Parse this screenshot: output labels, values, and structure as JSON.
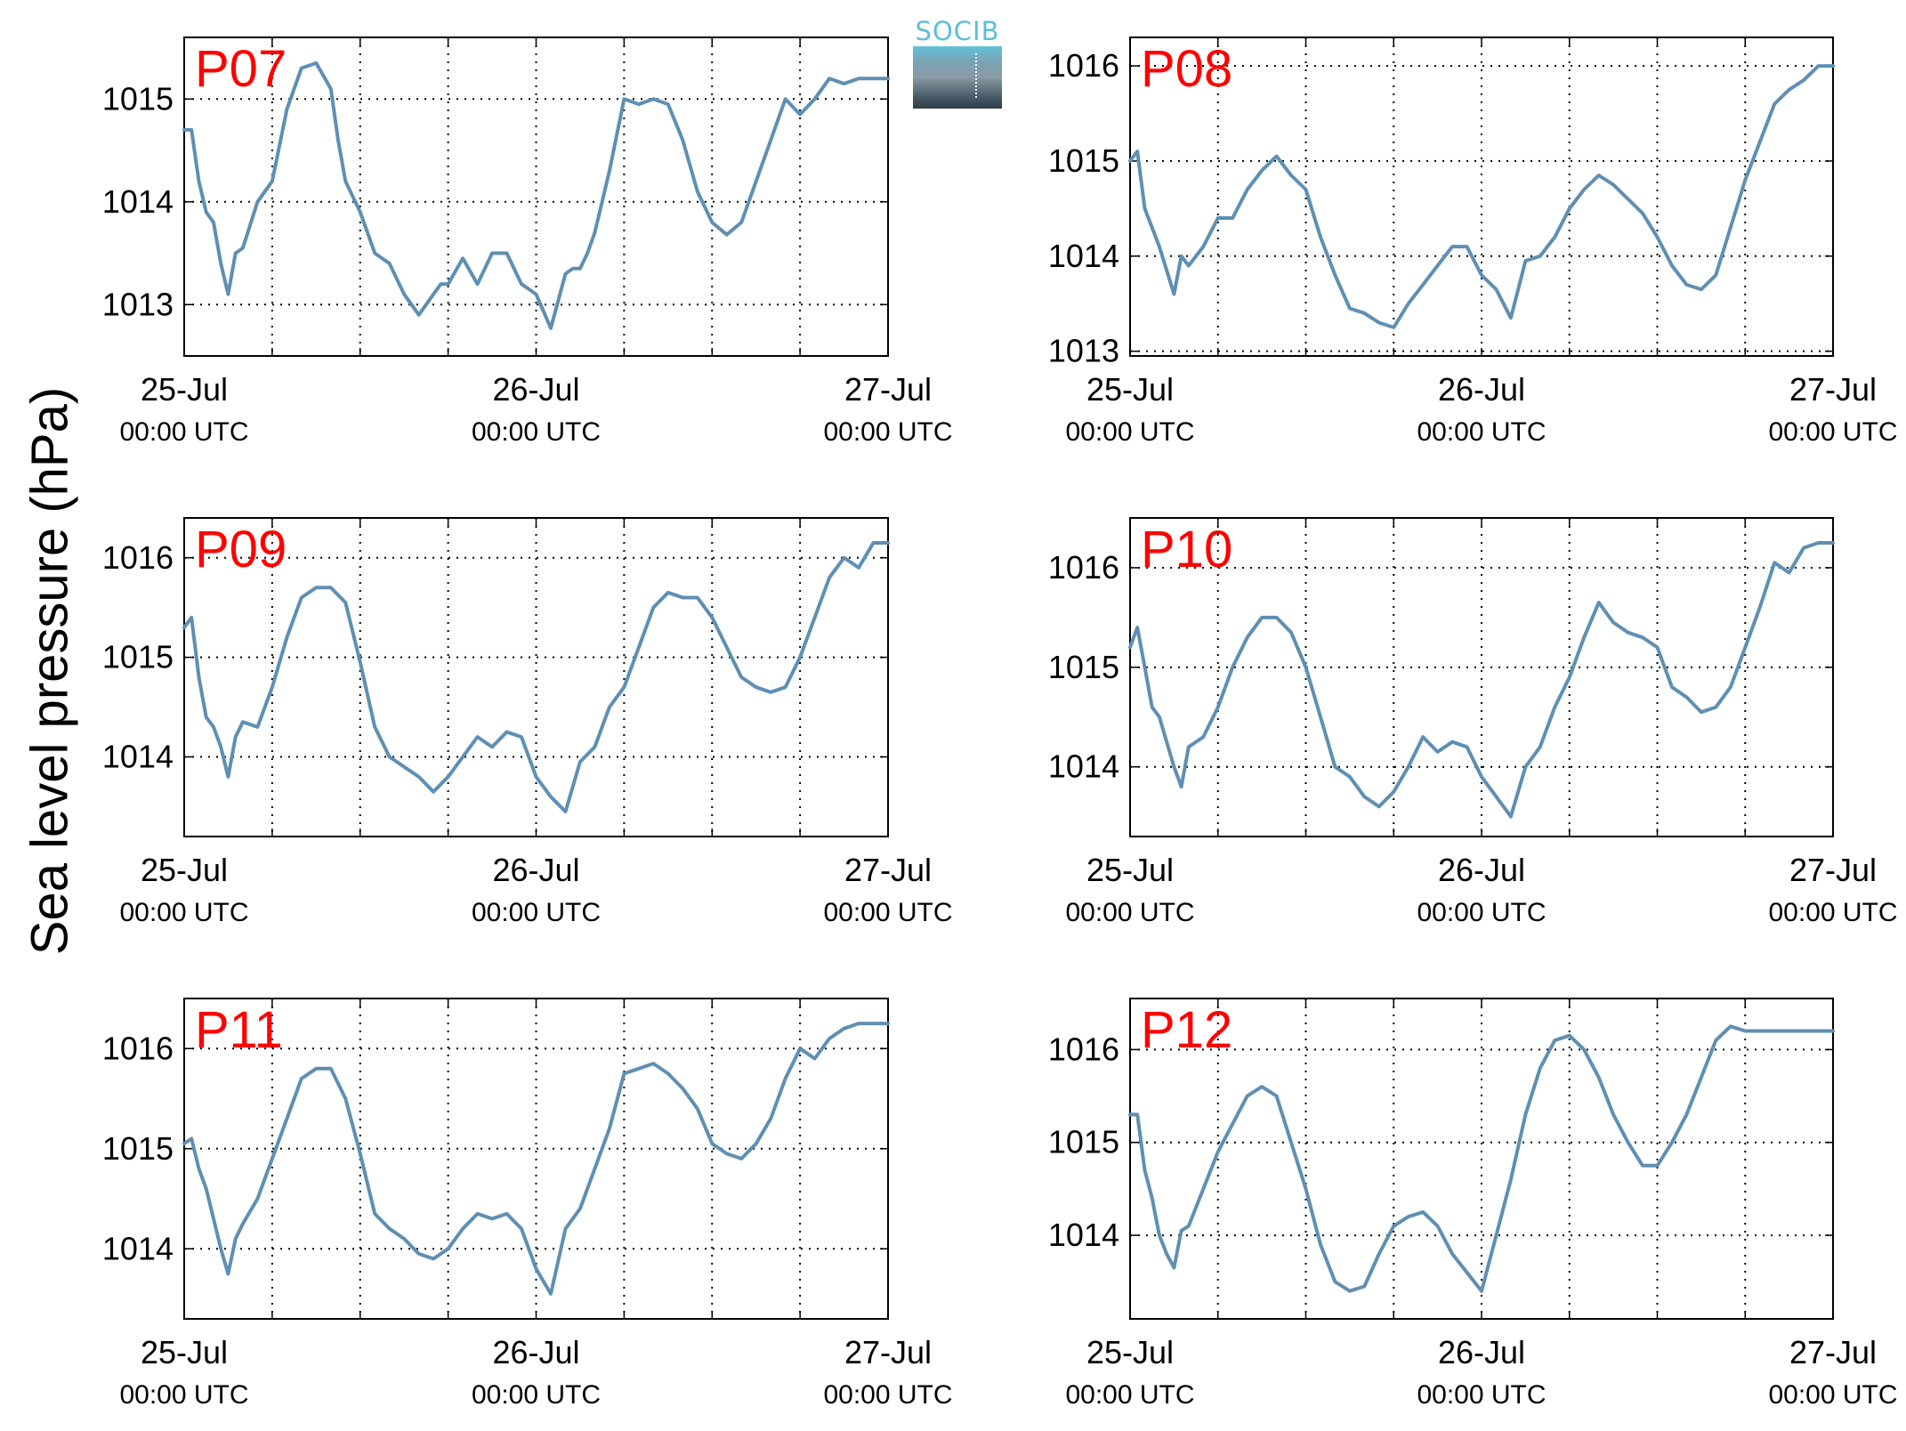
{
  "figure": {
    "ylabel": "Sea level pressure (hPa)",
    "logo_text": "SOCIB",
    "colors": {
      "line": "#5f8fb3",
      "panel_label": "#ff0000",
      "grid": "#000000"
    },
    "x_tick_dates": [
      "25-Jul",
      "26-Jul",
      "27-Jul"
    ],
    "x_tick_times": [
      "00:00 UTC",
      "00:00 UTC",
      "00:00 UTC"
    ]
  },
  "chart_data": [
    {
      "type": "line",
      "label": "P07",
      "x_unit": "hours since 25-Jul 00:00 UTC",
      "xlim": [
        0,
        48
      ],
      "ylim": [
        1012.5,
        1015.6
      ],
      "yticks": [
        1013,
        1014,
        1015
      ],
      "grid": true,
      "series": [
        {
          "x": [
            0,
            0.5,
            1,
            1.5,
            2,
            2.5,
            3,
            3.5,
            4,
            5,
            6,
            7,
            8,
            9,
            10,
            10.5,
            11,
            12,
            13,
            14,
            15,
            16,
            17,
            17.5,
            18,
            19,
            20,
            21,
            22,
            23,
            23.5,
            24,
            25,
            26,
            26.5,
            27,
            27.5,
            28,
            29,
            30,
            31,
            32,
            33,
            34,
            35,
            36,
            37,
            38,
            39,
            40,
            41,
            42,
            43,
            44,
            45,
            46,
            46.5,
            47,
            48
          ],
          "y": [
            1014.7,
            1014.7,
            1014.2,
            1013.9,
            1013.8,
            1013.4,
            1013.1,
            1013.5,
            1013.55,
            1014.0,
            1014.2,
            1014.9,
            1015.3,
            1015.35,
            1015.1,
            1014.6,
            1014.2,
            1013.9,
            1013.5,
            1013.4,
            1013.1,
            1012.9,
            1013.1,
            1013.2,
            1013.2,
            1013.45,
            1013.2,
            1013.5,
            1013.5,
            1013.2,
            1013.15,
            1013.1,
            1012.77,
            1013.3,
            1013.35,
            1013.35,
            1013.5,
            1013.7,
            1014.3,
            1015.0,
            1014.95,
            1015.0,
            1014.95,
            1014.6,
            1014.1,
            1013.8,
            1013.68,
            1013.8,
            1014.2,
            1014.6,
            1015.0,
            1014.85,
            1015.0,
            1015.2,
            1015.15,
            1015.2,
            1015.2,
            1015.2,
            1015.2
          ]
        }
      ]
    },
    {
      "type": "line",
      "label": "P08",
      "x_unit": "hours since 25-Jul 00:00 UTC",
      "xlim": [
        0,
        48
      ],
      "ylim": [
        1012.95,
        1016.3
      ],
      "yticks": [
        1013,
        1014,
        1015,
        1016
      ],
      "grid": true,
      "series": [
        {
          "x": [
            0,
            0.5,
            1,
            1.5,
            2,
            3,
            3.5,
            4,
            4.5,
            5,
            6,
            7,
            8,
            9,
            10,
            11,
            12,
            13,
            14,
            15,
            16,
            17,
            18,
            19,
            20,
            21,
            22,
            23,
            24,
            25,
            26,
            27,
            28,
            29,
            30,
            31,
            32,
            33,
            34,
            35,
            36,
            37,
            38,
            39,
            40,
            41,
            42,
            43,
            44,
            45,
            46,
            47,
            48
          ],
          "y": [
            1015.0,
            1015.1,
            1014.5,
            1014.3,
            1014.1,
            1013.6,
            1014.0,
            1013.9,
            1014.0,
            1014.1,
            1014.4,
            1014.4,
            1014.7,
            1014.9,
            1015.05,
            1014.85,
            1014.7,
            1014.2,
            1013.8,
            1013.45,
            1013.4,
            1013.3,
            1013.25,
            1013.5,
            1013.7,
            1013.9,
            1014.1,
            1014.1,
            1013.8,
            1013.65,
            1013.35,
            1013.95,
            1014.0,
            1014.2,
            1014.5,
            1014.7,
            1014.85,
            1014.75,
            1014.6,
            1014.45,
            1014.2,
            1013.9,
            1013.7,
            1013.65,
            1013.8,
            1014.3,
            1014.8,
            1015.2,
            1015.6,
            1015.75,
            1015.85,
            1016.0,
            1016.0
          ]
        }
      ]
    },
    {
      "type": "line",
      "label": "P09",
      "x_unit": "hours since 25-Jul 00:00 UTC",
      "xlim": [
        0,
        48
      ],
      "ylim": [
        1013.2,
        1016.4
      ],
      "yticks": [
        1014,
        1015,
        1016
      ],
      "grid": true,
      "series": [
        {
          "x": [
            0,
            0.5,
            1,
            1.5,
            2,
            2.5,
            3,
            3.5,
            4,
            5,
            6,
            7,
            8,
            9,
            10,
            11,
            12,
            13,
            14,
            15,
            16,
            17,
            18,
            19,
            20,
            21,
            22,
            23,
            24,
            25,
            26,
            27,
            28,
            29,
            30,
            31,
            32,
            33,
            34,
            35,
            36,
            37,
            38,
            39,
            40,
            41,
            42,
            43,
            44,
            45,
            46,
            47,
            48
          ],
          "y": [
            1015.3,
            1015.4,
            1014.8,
            1014.4,
            1014.3,
            1014.1,
            1013.8,
            1014.2,
            1014.35,
            1014.3,
            1014.7,
            1015.2,
            1015.6,
            1015.7,
            1015.7,
            1015.55,
            1014.95,
            1014.3,
            1014.0,
            1013.9,
            1013.8,
            1013.65,
            1013.8,
            1014.0,
            1014.2,
            1014.1,
            1014.25,
            1014.2,
            1013.8,
            1013.6,
            1013.45,
            1013.95,
            1014.1,
            1014.5,
            1014.7,
            1015.1,
            1015.5,
            1015.65,
            1015.6,
            1015.6,
            1015.4,
            1015.1,
            1014.8,
            1014.7,
            1014.65,
            1014.7,
            1015.0,
            1015.4,
            1015.8,
            1016.0,
            1015.9,
            1016.15,
            1016.15
          ]
        }
      ]
    },
    {
      "type": "line",
      "label": "P10",
      "x_unit": "hours since 25-Jul 00:00 UTC",
      "xlim": [
        0,
        48
      ],
      "ylim": [
        1013.3,
        1016.5
      ],
      "yticks": [
        1014,
        1015,
        1016
      ],
      "grid": true,
      "series": [
        {
          "x": [
            0,
            0.5,
            1,
            1.5,
            2,
            3,
            3.5,
            4,
            5,
            6,
            7,
            8,
            9,
            10,
            11,
            12,
            13,
            14,
            15,
            16,
            17,
            18,
            19,
            20,
            21,
            22,
            23,
            24,
            25,
            26,
            27,
            28,
            29,
            30,
            31,
            32,
            33,
            34,
            35,
            36,
            37,
            38,
            39,
            40,
            41,
            42,
            43,
            44,
            45,
            46,
            47,
            48
          ],
          "y": [
            1015.2,
            1015.4,
            1015.0,
            1014.6,
            1014.5,
            1014.0,
            1013.8,
            1014.2,
            1014.3,
            1014.6,
            1015.0,
            1015.3,
            1015.5,
            1015.5,
            1015.35,
            1015.0,
            1014.5,
            1014.0,
            1013.9,
            1013.7,
            1013.6,
            1013.75,
            1014.0,
            1014.3,
            1014.15,
            1014.25,
            1014.2,
            1013.9,
            1013.7,
            1013.5,
            1014.0,
            1014.2,
            1014.6,
            1014.9,
            1015.3,
            1015.65,
            1015.45,
            1015.35,
            1015.3,
            1015.2,
            1014.8,
            1014.7,
            1014.55,
            1014.6,
            1014.8,
            1015.2,
            1015.6,
            1016.05,
            1015.95,
            1016.2,
            1016.25,
            1016.25
          ]
        }
      ]
    },
    {
      "type": "line",
      "label": "P11",
      "x_unit": "hours since 25-Jul 00:00 UTC",
      "xlim": [
        0,
        48
      ],
      "ylim": [
        1013.3,
        1016.5
      ],
      "yticks": [
        1014,
        1015,
        1016
      ],
      "grid": true,
      "series": [
        {
          "x": [
            0,
            0.5,
            1,
            1.5,
            2,
            2.5,
            3,
            3.5,
            4,
            5,
            6,
            7,
            8,
            9,
            10,
            11,
            12,
            13,
            14,
            15,
            16,
            17,
            18,
            19,
            20,
            21,
            22,
            23,
            24,
            25,
            26,
            27,
            28,
            29,
            30,
            31,
            32,
            33,
            34,
            35,
            36,
            37,
            38,
            39,
            40,
            41,
            42,
            43,
            44,
            45,
            46,
            47,
            48
          ],
          "y": [
            1015.05,
            1015.1,
            1014.8,
            1014.6,
            1014.3,
            1014.0,
            1013.75,
            1014.1,
            1014.25,
            1014.5,
            1014.9,
            1015.3,
            1015.7,
            1015.8,
            1015.8,
            1015.5,
            1014.95,
            1014.35,
            1014.2,
            1014.1,
            1013.95,
            1013.9,
            1014.0,
            1014.2,
            1014.35,
            1014.3,
            1014.35,
            1014.2,
            1013.8,
            1013.55,
            1014.2,
            1014.4,
            1014.8,
            1015.2,
            1015.75,
            1015.8,
            1015.85,
            1015.75,
            1015.6,
            1015.4,
            1015.05,
            1014.95,
            1014.9,
            1015.05,
            1015.3,
            1015.7,
            1016.0,
            1015.9,
            1016.1,
            1016.2,
            1016.25,
            1016.25,
            1016.25
          ]
        }
      ]
    },
    {
      "type": "line",
      "label": "P12",
      "x_unit": "hours since 25-Jul 00:00 UTC",
      "xlim": [
        0,
        48
      ],
      "ylim": [
        1013.1,
        1016.55
      ],
      "yticks": [
        1014,
        1015,
        1016
      ],
      "grid": true,
      "series": [
        {
          "x": [
            0,
            0.5,
            1,
            1.5,
            2,
            2.5,
            3,
            3.5,
            4,
            5,
            6,
            7,
            8,
            9,
            10,
            11,
            12,
            13,
            14,
            15,
            16,
            17,
            18,
            19,
            20,
            21,
            22,
            23,
            24,
            25,
            26,
            27,
            28,
            29,
            30,
            31,
            32,
            33,
            34,
            35,
            36,
            37,
            38,
            39,
            40,
            41,
            42,
            43,
            44,
            45,
            46,
            47,
            48
          ],
          "y": [
            1015.3,
            1015.3,
            1014.7,
            1014.4,
            1014.0,
            1013.8,
            1013.65,
            1014.05,
            1014.1,
            1014.5,
            1014.9,
            1015.2,
            1015.5,
            1015.6,
            1015.5,
            1015.0,
            1014.5,
            1013.9,
            1013.5,
            1013.4,
            1013.45,
            1013.8,
            1014.1,
            1014.2,
            1014.25,
            1014.1,
            1013.8,
            1013.6,
            1013.4,
            1014.0,
            1014.6,
            1015.3,
            1015.8,
            1016.1,
            1016.15,
            1016.0,
            1015.7,
            1015.3,
            1015.0,
            1014.75,
            1014.75,
            1015.0,
            1015.3,
            1015.7,
            1016.1,
            1016.25,
            1016.2,
            1016.2,
            1016.2,
            1016.2,
            1016.2,
            1016.2,
            1016.2
          ]
        }
      ]
    }
  ]
}
